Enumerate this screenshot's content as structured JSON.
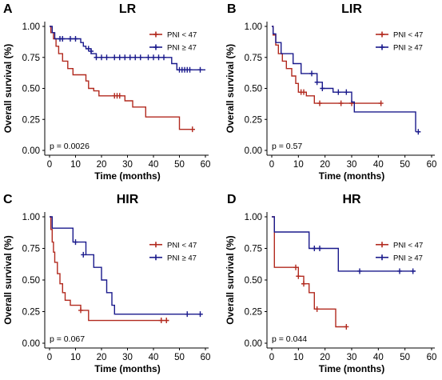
{
  "colors": {
    "pni_low": "#b22a1f",
    "pni_high": "#1a1a8c"
  },
  "chart_data": [
    {
      "type": "line",
      "panel": "A",
      "title": "LR",
      "xlabel": "Time (months)",
      "ylabel": "Overall survival (%)",
      "xlim": [
        0,
        60
      ],
      "ylim": [
        0,
        1
      ],
      "xticks": [
        "0",
        "10",
        "20",
        "30",
        "40",
        "50",
        "60"
      ],
      "yticks": [
        "0.00",
        "0.25",
        "0.50",
        "0.75",
        "1.00"
      ],
      "legend_position": "top-right",
      "pvalue": "p = 0.0026",
      "series": [
        {
          "name": "PNI < 47",
          "color": "#b22a1f",
          "steps": [
            [
              0,
              1.0
            ],
            [
              0.5,
              0.95
            ],
            [
              1.5,
              0.9
            ],
            [
              2.5,
              0.84
            ],
            [
              3.5,
              0.78
            ],
            [
              5,
              0.72
            ],
            [
              7,
              0.66
            ],
            [
              9,
              0.61
            ],
            [
              14,
              0.56
            ],
            [
              15,
              0.5
            ],
            [
              17,
              0.48
            ],
            [
              19,
              0.44
            ],
            [
              29,
              0.4
            ],
            [
              32,
              0.35
            ],
            [
              37,
              0.27
            ],
            [
              50,
              0.17
            ],
            [
              56,
              0.17
            ]
          ],
          "censors": [
            [
              25,
              0.44
            ],
            [
              26,
              0.44
            ],
            [
              27,
              0.44
            ],
            [
              55,
              0.17
            ]
          ]
        },
        {
          "name": "PNI ≥ 47",
          "color": "#1a1a8c",
          "steps": [
            [
              0,
              1.0
            ],
            [
              1,
              0.95
            ],
            [
              2,
              0.9
            ],
            [
              12,
              0.87
            ],
            [
              13,
              0.84
            ],
            [
              14,
              0.82
            ],
            [
              16,
              0.78
            ],
            [
              18,
              0.75
            ],
            [
              47,
              0.7
            ],
            [
              49,
              0.65
            ],
            [
              60,
              0.65
            ]
          ],
          "censors": [
            [
              4,
              0.9
            ],
            [
              5,
              0.9
            ],
            [
              8,
              0.9
            ],
            [
              10,
              0.9
            ],
            [
              15,
              0.82
            ],
            [
              16,
              0.8
            ],
            [
              18,
              0.75
            ],
            [
              20,
              0.75
            ],
            [
              22,
              0.75
            ],
            [
              25,
              0.75
            ],
            [
              27,
              0.75
            ],
            [
              29,
              0.75
            ],
            [
              31,
              0.75
            ],
            [
              33,
              0.75
            ],
            [
              35,
              0.75
            ],
            [
              38,
              0.75
            ],
            [
              40,
              0.75
            ],
            [
              42,
              0.75
            ],
            [
              44,
              0.75
            ],
            [
              50,
              0.65
            ],
            [
              51,
              0.65
            ],
            [
              52,
              0.65
            ],
            [
              53,
              0.65
            ],
            [
              54,
              0.65
            ],
            [
              58,
              0.65
            ]
          ]
        }
      ]
    },
    {
      "type": "line",
      "panel": "B",
      "title": "LIR",
      "xlabel": "Time (months)",
      "ylabel": "Overall survival (%)",
      "xlim": [
        0,
        60
      ],
      "ylim": [
        0,
        1
      ],
      "xticks": [
        "0",
        "10",
        "20",
        "30",
        "40",
        "50",
        "60"
      ],
      "yticks": [
        "0.00",
        "0.25",
        "0.50",
        "0.75",
        "1.00"
      ],
      "legend_position": "top-right",
      "pvalue": "p = 0.57",
      "series": [
        {
          "name": "PNI < 47",
          "color": "#b22a1f",
          "steps": [
            [
              0,
              1.0
            ],
            [
              0.5,
              0.93
            ],
            [
              1.5,
              0.85
            ],
            [
              2.5,
              0.78
            ],
            [
              4,
              0.72
            ],
            [
              5.5,
              0.66
            ],
            [
              7.5,
              0.6
            ],
            [
              9,
              0.54
            ],
            [
              10,
              0.47
            ],
            [
              13,
              0.44
            ],
            [
              16,
              0.38
            ],
            [
              41,
              0.38
            ]
          ],
          "censors": [
            [
              11,
              0.47
            ],
            [
              12,
              0.47
            ],
            [
              18,
              0.38
            ],
            [
              26,
              0.38
            ],
            [
              30,
              0.38
            ],
            [
              41,
              0.38
            ]
          ]
        },
        {
          "name": "PNI ≥ 47",
          "color": "#1a1a8c",
          "steps": [
            [
              0,
              1.0
            ],
            [
              0.5,
              0.94
            ],
            [
              1.5,
              0.87
            ],
            [
              3.5,
              0.78
            ],
            [
              8,
              0.7
            ],
            [
              11,
              0.62
            ],
            [
              17,
              0.55
            ],
            [
              19,
              0.5
            ],
            [
              23,
              0.47
            ],
            [
              30,
              0.39
            ],
            [
              31,
              0.31
            ],
            [
              54,
              0.31
            ],
            [
              54,
              0.15
            ]
          ],
          "censors": [
            [
              15,
              0.62
            ],
            [
              17,
              0.55
            ],
            [
              19,
              0.5
            ],
            [
              25,
              0.47
            ],
            [
              28,
              0.47
            ],
            [
              55,
              0.15
            ]
          ]
        }
      ]
    },
    {
      "type": "line",
      "panel": "C",
      "title": "HIR",
      "xlabel": "Time (months)",
      "ylabel": "Overall survival (%)",
      "xlim": [
        0,
        60
      ],
      "ylim": [
        0,
        1
      ],
      "xticks": [
        "0",
        "10",
        "20",
        "30",
        "40",
        "50",
        "60"
      ],
      "yticks": [
        "0.00",
        "0.25",
        "0.50",
        "0.75",
        "1.00"
      ],
      "legend_position": "center-right",
      "pvalue": "p = 0.067",
      "series": [
        {
          "name": "PNI < 47",
          "color": "#b22a1f",
          "steps": [
            [
              0,
              1.0
            ],
            [
              0.5,
              0.9
            ],
            [
              1,
              0.8
            ],
            [
              1.5,
              0.72
            ],
            [
              2,
              0.64
            ],
            [
              3,
              0.55
            ],
            [
              4,
              0.47
            ],
            [
              5,
              0.4
            ],
            [
              6,
              0.34
            ],
            [
              8,
              0.3
            ],
            [
              12,
              0.26
            ],
            [
              15,
              0.18
            ],
            [
              46,
              0.18
            ]
          ],
          "censors": [
            [
              12,
              0.26
            ],
            [
              43,
              0.18
            ],
            [
              45,
              0.18
            ]
          ]
        },
        {
          "name": "PNI ≥ 47",
          "color": "#1a1a8c",
          "steps": [
            [
              0,
              1.0
            ],
            [
              1,
              0.91
            ],
            [
              9,
              0.8
            ],
            [
              14,
              0.7
            ],
            [
              17,
              0.6
            ],
            [
              20,
              0.5
            ],
            [
              22,
              0.4
            ],
            [
              24,
              0.3
            ],
            [
              25,
              0.23
            ],
            [
              59,
              0.23
            ]
          ],
          "censors": [
            [
              10,
              0.8
            ],
            [
              13,
              0.7
            ],
            [
              53,
              0.23
            ],
            [
              58,
              0.23
            ]
          ]
        }
      ]
    },
    {
      "type": "line",
      "panel": "D",
      "title": "HR",
      "xlabel": "Time (months)",
      "ylabel": "Overall survival (%)",
      "xlim": [
        0,
        60
      ],
      "ylim": [
        0,
        1
      ],
      "xticks": [
        "0",
        "10",
        "20",
        "30",
        "40",
        "50",
        "60"
      ],
      "yticks": [
        "0.00",
        "0.25",
        "0.50",
        "0.75",
        "1.00"
      ],
      "legend_position": "center-right",
      "pvalue": "p = 0.044",
      "series": [
        {
          "name": "PNI < 47",
          "color": "#b22a1f",
          "steps": [
            [
              0,
              1.0
            ],
            [
              1,
              0.6
            ],
            [
              10,
              0.53
            ],
            [
              12,
              0.47
            ],
            [
              14,
              0.4
            ],
            [
              16,
              0.27
            ],
            [
              24,
              0.13
            ],
            [
              28,
              0.13
            ]
          ],
          "censors": [
            [
              9,
              0.6
            ],
            [
              10,
              0.53
            ],
            [
              12,
              0.47
            ],
            [
              17,
              0.27
            ],
            [
              28,
              0.13
            ]
          ]
        },
        {
          "name": "PNI ≥ 47",
          "color": "#1a1a8c",
          "steps": [
            [
              0,
              1.0
            ],
            [
              1,
              0.88
            ],
            [
              14,
              0.75
            ],
            [
              25,
              0.57
            ],
            [
              54,
              0.57
            ]
          ],
          "censors": [
            [
              16,
              0.75
            ],
            [
              18,
              0.75
            ],
            [
              33,
              0.57
            ],
            [
              48,
              0.57
            ],
            [
              53,
              0.57
            ]
          ]
        }
      ]
    }
  ]
}
